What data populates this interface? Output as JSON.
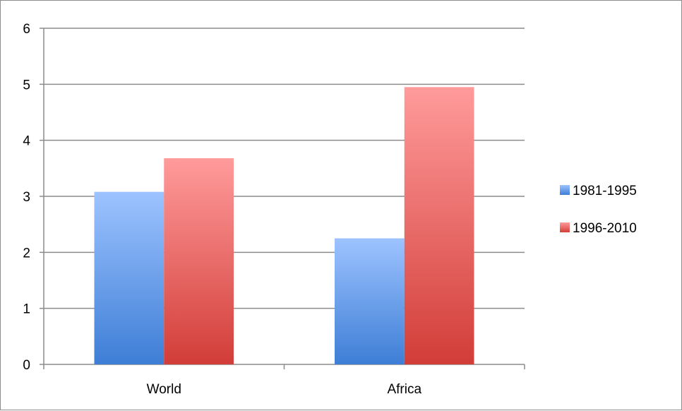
{
  "chart_data": {
    "type": "bar",
    "categories": [
      "World",
      "Africa"
    ],
    "series": [
      {
        "name": "1981-1995",
        "values": [
          3.08,
          2.25
        ],
        "color": "#4a86d8"
      },
      {
        "name": "1996-2010",
        "values": [
          3.68,
          4.95
        ],
        "color": "#d9433f"
      }
    ],
    "ylim": [
      0,
      6
    ],
    "yticks": [
      0,
      1,
      2,
      3,
      4,
      5,
      6
    ],
    "grid": true,
    "legend_position": "right"
  }
}
